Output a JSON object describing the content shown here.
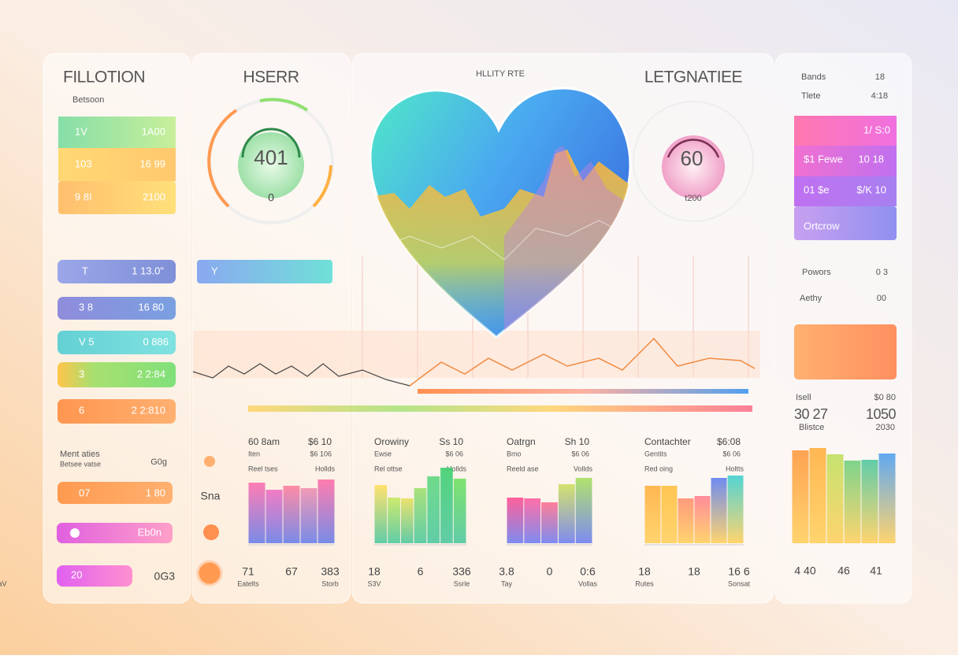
{
  "left": {
    "title": "FILLOTION",
    "subtitle": "Betsoon",
    "rows": [
      [
        "1V",
        "1A00"
      ],
      [
        "103",
        "16 99"
      ],
      [
        "9 8I",
        "2100"
      ]
    ],
    "pills": [
      [
        "T",
        "1 13.0\""
      ],
      [
        "3 8",
        "16 80"
      ],
      [
        "V 5",
        "0 886"
      ],
      [
        "3",
        "2 2:84"
      ],
      [
        "6",
        "2 2:810"
      ]
    ],
    "section": {
      "title": "Ment aties",
      "subtitle": "Betsee vatse",
      "value": "G0g"
    },
    "bottom_pills": [
      {
        "label": "07",
        "value": "1 80"
      },
      {
        "label": "Eb0n"
      },
      {
        "label": "20",
        "value": "0G3"
      }
    ]
  },
  "gauge_panel": {
    "title": "HSERR",
    "gauge_value": "401",
    "gauge_sub": "0",
    "bar_label": "Y",
    "side_label": "Sna"
  },
  "center": {
    "title": "HLLITY RTE",
    "title_right": "LETGNATIEE",
    "gauge_value": "60",
    "gauge_sub": "t200"
  },
  "mini_charts": [
    {
      "title": "60 8am",
      "value": "$6 10",
      "sub": "Iten",
      "sub_value": "$6 106",
      "legend": "Reel tses",
      "legend_value": "Hollds",
      "ylim": [
        0,
        100
      ],
      "bars": [
        77,
        68,
        73,
        70,
        81
      ],
      "colors": [
        "#ff70b0",
        "#f070c0",
        "#ff80a0",
        "#f090b0",
        "#ff70a8"
      ],
      "base_color": "#6a80e8",
      "stats": [
        "71",
        "67",
        "383"
      ],
      "stat_labels": [
        "Eatelts",
        "Storb",
        "SaV"
      ]
    },
    {
      "title": "Orowiny",
      "value": "Ss 10",
      "sub": "Ewse",
      "sub_value": "$6 06",
      "legend": "Rel ottse",
      "legend_value": "Hollds",
      "ylim": [
        0,
        100
      ],
      "bars": [
        74,
        58,
        57,
        70,
        85,
        96,
        82
      ],
      "colors": [
        "#ffe060",
        "#c8e860",
        "#e8e060",
        "#a0e070",
        "#60d880",
        "#40d070",
        "#70e060"
      ],
      "base_color": "#50c8a0",
      "stats": [
        "18",
        "6",
        "336"
      ],
      "stat_labels": [
        "S3V",
        "Ssrle"
      ]
    },
    {
      "title": "Oatrgn",
      "value": "Sh 10",
      "sub": "Bmo",
      "sub_value": "$6 06",
      "legend": "Reeld ase",
      "legend_value": "Vollds",
      "ylim": [
        0,
        100
      ],
      "bars": [
        58,
        57,
        52,
        75,
        83
      ],
      "colors": [
        "#ff5090",
        "#ff60a0",
        "#ff7090",
        "#d0e060",
        "#a8e060"
      ],
      "base_color": "#7080f0",
      "stats": [
        "3.8",
        "0",
        "0:6"
      ],
      "stat_labels": [
        "Tay",
        "Vollas"
      ]
    },
    {
      "title": "Contachter",
      "value": "$6:08",
      "sub": "Gentits",
      "sub_value": "$6 06",
      "legend": "Red oing",
      "legend_value": "Holtts",
      "ylim": [
        0,
        100
      ],
      "bars": [
        73,
        73,
        57,
        60,
        83,
        86
      ],
      "colors": [
        "#ffb040",
        "#ffc040",
        "#ff9070",
        "#ff8090",
        "#6080f0",
        "#40d0d0"
      ],
      "base_color": "#ffd060",
      "stats": [
        "18",
        "18",
        "16 6"
      ],
      "stat_labels": [
        "Rutes",
        "Sonsat"
      ]
    }
  ],
  "right": {
    "head": [
      [
        "Bands",
        "18"
      ],
      [
        "Tlete",
        "4:18"
      ]
    ],
    "rows": [
      {
        "value": "1/ S:0"
      },
      {
        "label": "$1 Fewe",
        "value": "10 18"
      },
      {
        "label": "01 $e",
        "value": "$/K 10"
      },
      {
        "label": "Ortcrow"
      }
    ],
    "items": [
      [
        "Powors",
        "0 3"
      ],
      [
        "Aethy",
        "00"
      ]
    ],
    "stats": [
      [
        "Isell",
        "$0 80"
      ],
      [
        "30 27",
        "1050"
      ],
      [
        "Blistce",
        "2030"
      ]
    ],
    "chart": {
      "ylim": [
        0,
        125
      ],
      "bars": [
        118,
        121,
        113,
        105,
        106,
        114
      ],
      "colors": [
        "#ff9a40",
        "#ffb040",
        "#c0e060",
        "#70d080",
        "#50c8a0",
        "#50a0f0"
      ],
      "base_color": "#ffd060",
      "labels": [
        "4 40",
        "46",
        "41"
      ]
    }
  }
}
